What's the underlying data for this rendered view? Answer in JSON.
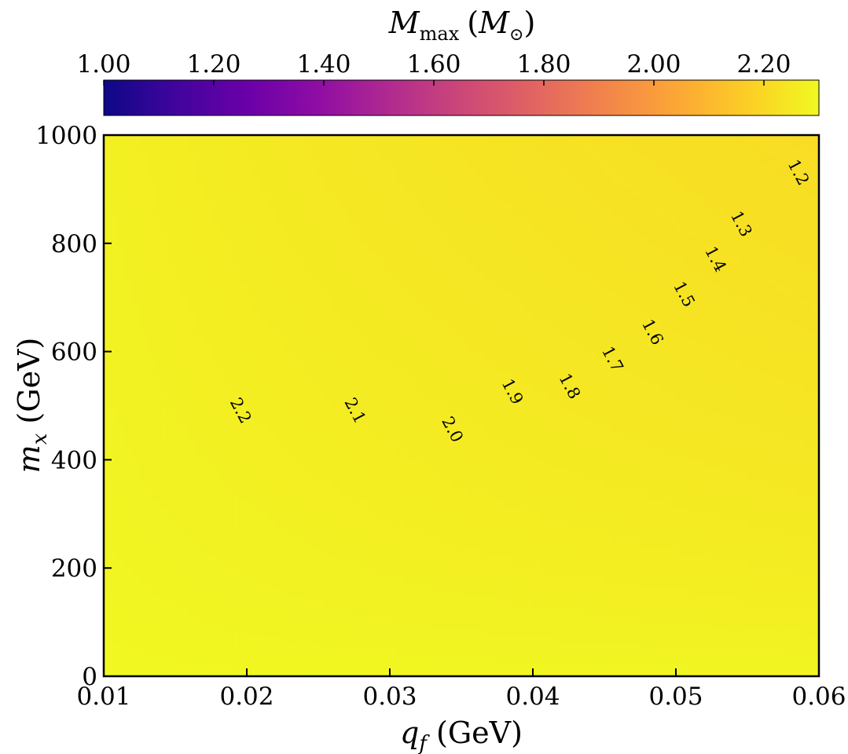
{
  "chart_data": {
    "type": "heatmap",
    "subtype": "filled-contour",
    "colormap": "plasma",
    "colorbar": {
      "label": "M_max (M_⊙)",
      "label_main": "M",
      "label_sub": "max",
      "label_unit_open": "(",
      "label_unit_main": "M",
      "label_unit_sub": "⊙",
      "label_unit_close": ")",
      "range": [
        1.0,
        2.3
      ],
      "ticks": [
        1.0,
        1.2,
        1.4,
        1.6,
        1.8,
        2.0,
        2.2
      ],
      "tick_labels": [
        "1.00",
        "1.20",
        "1.40",
        "1.60",
        "1.80",
        "2.00",
        "2.20"
      ],
      "placement": "top"
    },
    "x_axis": {
      "label": "q_f (GeV)",
      "label_main": "q",
      "label_sub": "f",
      "label_unit": "(GeV)",
      "range": [
        0.01,
        0.06
      ],
      "ticks": [
        0.01,
        0.02,
        0.03,
        0.04,
        0.05,
        0.06
      ],
      "tick_labels": [
        "0.01",
        "0.02",
        "0.03",
        "0.04",
        "0.05",
        "0.06"
      ]
    },
    "y_axis": {
      "label": "m_x (GeV)",
      "label_main": "m",
      "label_sub": "x",
      "label_unit": "(GeV)",
      "range": [
        0,
        1000
      ],
      "ticks": [
        0,
        200,
        400,
        600,
        800,
        1000
      ],
      "tick_labels": [
        "0",
        "200",
        "400",
        "600",
        "800",
        "1000"
      ]
    },
    "contour_levels": [
      1.2,
      1.3,
      1.4,
      1.5,
      1.6,
      1.7,
      1.8,
      1.9,
      2.0,
      2.1,
      2.2
    ],
    "highlight": {
      "level": 2.0,
      "color": "#0000ff"
    },
    "contour_labels": [
      {
        "text": "2.2",
        "level": 2.2,
        "x": 0.0195,
        "y": 490
      },
      {
        "text": "2.1",
        "level": 2.1,
        "x": 0.0275,
        "y": 490
      },
      {
        "text": "2.0",
        "level": 2.0,
        "x": 0.0343,
        "y": 455
      },
      {
        "text": "1.9",
        "level": 1.9,
        "x": 0.0385,
        "y": 525
      },
      {
        "text": "1.8",
        "level": 1.8,
        "x": 0.0425,
        "y": 535
      },
      {
        "text": "1.7",
        "level": 1.7,
        "x": 0.0455,
        "y": 585
      },
      {
        "text": "1.6",
        "level": 1.6,
        "x": 0.0483,
        "y": 635
      },
      {
        "text": "1.5",
        "level": 1.5,
        "x": 0.0505,
        "y": 705
      },
      {
        "text": "1.4",
        "level": 1.4,
        "x": 0.0527,
        "y": 770
      },
      {
        "text": "1.3",
        "level": 1.3,
        "x": 0.0545,
        "y": 835
      },
      {
        "text": "1.2",
        "level": 1.2,
        "x": 0.0585,
        "y": 930
      }
    ],
    "grid": false
  }
}
